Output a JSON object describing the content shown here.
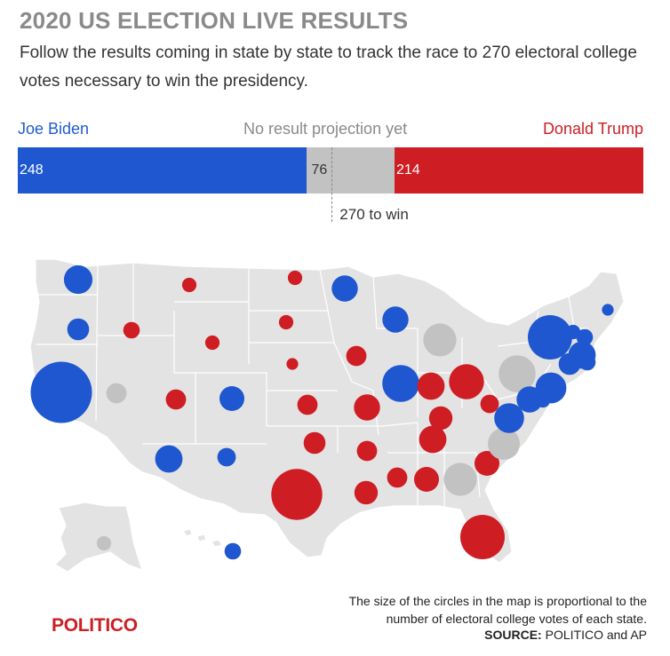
{
  "header": {
    "title": "2020 US ELECTION LIVE RESULTS",
    "subtitle": "Follow the results coming in state by state to track the race to 270 electoral college votes necessary to win the presidency."
  },
  "chart_data": {
    "type": "bar",
    "orientation": "horizontal-stacked",
    "total": 538,
    "legend": {
      "biden": "Joe Biden",
      "undecided": "No result projection yet",
      "trump": "Donald Trump"
    },
    "series": [
      {
        "name": "Joe Biden",
        "key": "biden",
        "value": 248,
        "label": "248"
      },
      {
        "name": "No result projection yet",
        "key": "undecided",
        "value": 76,
        "label": "76"
      },
      {
        "name": "Donald Trump",
        "key": "trump",
        "value": 214,
        "label": "214"
      }
    ],
    "threshold": {
      "value": 270,
      "label": "270 to win"
    },
    "colors": {
      "biden": "#1e57cf",
      "undecided": "#c2c2c2",
      "trump": "#cf1d24",
      "land": "#e3e3e3"
    },
    "map": {
      "type": "proportional-symbol",
      "measure": "electoral college votes",
      "states": [
        {
          "state": "WA",
          "ev": 12,
          "winner": "biden"
        },
        {
          "state": "OR",
          "ev": 7,
          "winner": "biden"
        },
        {
          "state": "CA",
          "ev": 55,
          "winner": "biden"
        },
        {
          "state": "NV",
          "ev": 6,
          "winner": "undecided"
        },
        {
          "state": "ID",
          "ev": 4,
          "winner": "trump"
        },
        {
          "state": "MT",
          "ev": 3,
          "winner": "trump"
        },
        {
          "state": "WY",
          "ev": 3,
          "winner": "trump"
        },
        {
          "state": "UT",
          "ev": 6,
          "winner": "trump"
        },
        {
          "state": "CO",
          "ev": 9,
          "winner": "biden"
        },
        {
          "state": "AZ",
          "ev": 11,
          "winner": "biden"
        },
        {
          "state": "NM",
          "ev": 5,
          "winner": "biden"
        },
        {
          "state": "ND",
          "ev": 3,
          "winner": "trump"
        },
        {
          "state": "SD",
          "ev": 3,
          "winner": "trump"
        },
        {
          "state": "NE",
          "ev": 2,
          "winner": "trump"
        },
        {
          "state": "KS",
          "ev": 6,
          "winner": "trump"
        },
        {
          "state": "OK",
          "ev": 7,
          "winner": "trump"
        },
        {
          "state": "TX",
          "ev": 38,
          "winner": "trump"
        },
        {
          "state": "MN",
          "ev": 10,
          "winner": "biden"
        },
        {
          "state": "IA",
          "ev": 6,
          "winner": "trump"
        },
        {
          "state": "MO",
          "ev": 10,
          "winner": "trump"
        },
        {
          "state": "AR",
          "ev": 6,
          "winner": "trump"
        },
        {
          "state": "LA",
          "ev": 8,
          "winner": "trump"
        },
        {
          "state": "WI",
          "ev": 10,
          "winner": "biden"
        },
        {
          "state": "MI",
          "ev": 16,
          "winner": "undecided"
        },
        {
          "state": "IL",
          "ev": 20,
          "winner": "biden"
        },
        {
          "state": "IN",
          "ev": 11,
          "winner": "trump"
        },
        {
          "state": "OH",
          "ev": 18,
          "winner": "trump"
        },
        {
          "state": "KY",
          "ev": 8,
          "winner": "trump"
        },
        {
          "state": "TN",
          "ev": 11,
          "winner": "trump"
        },
        {
          "state": "MS",
          "ev": 6,
          "winner": "trump"
        },
        {
          "state": "AL",
          "ev": 9,
          "winner": "trump"
        },
        {
          "state": "GA",
          "ev": 16,
          "winner": "undecided"
        },
        {
          "state": "FL",
          "ev": 29,
          "winner": "trump"
        },
        {
          "state": "SC",
          "ev": 9,
          "winner": "trump"
        },
        {
          "state": "NC",
          "ev": 15,
          "winner": "undecided"
        },
        {
          "state": "VA",
          "ev": 13,
          "winner": "biden"
        },
        {
          "state": "WV",
          "ev": 5,
          "winner": "trump"
        },
        {
          "state": "PA",
          "ev": 20,
          "winner": "undecided"
        },
        {
          "state": "NY",
          "ev": 29,
          "winner": "biden"
        },
        {
          "state": "NJ",
          "ev": 14,
          "winner": "biden"
        },
        {
          "state": "DE",
          "ev": 3,
          "winner": "biden"
        },
        {
          "state": "MD",
          "ev": 10,
          "winner": "biden"
        },
        {
          "state": "CT",
          "ev": 7,
          "winner": "biden"
        },
        {
          "state": "RI",
          "ev": 4,
          "winner": "biden"
        },
        {
          "state": "MA",
          "ev": 11,
          "winner": "biden"
        },
        {
          "state": "VT",
          "ev": 3,
          "winner": "biden"
        },
        {
          "state": "NH",
          "ev": 4,
          "winner": "biden"
        },
        {
          "state": "ME",
          "ev": 2,
          "winner": "biden"
        },
        {
          "state": "AK",
          "ev": 3,
          "winner": "undecided"
        },
        {
          "state": "HI",
          "ev": 4,
          "winner": "biden"
        }
      ]
    }
  },
  "footer": {
    "note": "The size of the circles in the map is proportional to the number of electoral college votes of each state.",
    "source_label": "SOURCE:",
    "source_text": "POLITICO and AP",
    "logo": "POLITICO"
  }
}
